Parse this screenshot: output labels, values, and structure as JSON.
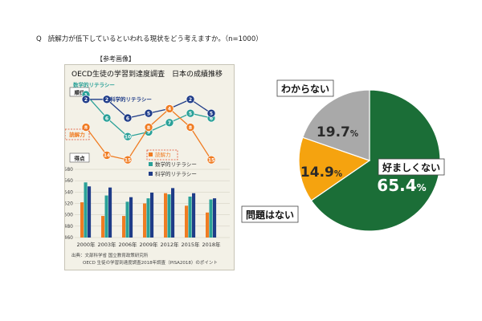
{
  "question": {
    "prefix": "Q",
    "text": "読解力が低下しているといわれる現状をどう考えますか。（n=1000）"
  },
  "reference_label": "【参考画像】",
  "left_panel": {
    "title": "OECD生徒の学習到達度調査　日本の成績推移",
    "rank_label": "順位",
    "score_label": "得点",
    "source_line1": "出典：文部科学省 国立教育政策研究所",
    "source_line2": "OECD 生徒の学習到達度調査2018年調査（PISA2018）のポイント"
  },
  "chart_data": [
    {
      "type": "line",
      "title": "OECD生徒の学習到達度調査　日本の成績推移",
      "ylabel": "順位",
      "y_inverted": true,
      "x": [
        "2000年",
        "2003年",
        "2006年",
        "2009年",
        "2012年",
        "2015年",
        "2018年"
      ],
      "series": [
        {
          "name": "数学的リテラシー",
          "color": "#2aa198",
          "values": [
            1,
            6,
            10,
            9,
            7,
            5,
            6
          ]
        },
        {
          "name": "科学的リテラシー",
          "color": "#1f3c88",
          "values": [
            2,
            2,
            6,
            5,
            4,
            2,
            5
          ]
        },
        {
          "name": "読解力",
          "color": "#f07c22",
          "values": [
            8,
            14,
            15,
            8,
            4,
            8,
            15
          ]
        }
      ]
    },
    {
      "type": "bar",
      "ylabel": "得点",
      "categories": [
        "2000年",
        "2003年",
        "2006年",
        "2009年",
        "2012年",
        "2015年",
        "2018年"
      ],
      "ylim": [
        460,
        580
      ],
      "yticks": [
        460,
        480,
        500,
        520,
        540,
        560,
        580
      ],
      "series": [
        {
          "name": "読解力",
          "color": "#f07c22",
          "values": [
            522,
            498,
            498,
            520,
            538,
            516,
            504
          ]
        },
        {
          "name": "数学的リテラシー",
          "color": "#2aa198",
          "values": [
            557,
            534,
            523,
            529,
            536,
            532,
            527
          ]
        },
        {
          "name": "科学的リテラシー",
          "color": "#1f3c88",
          "values": [
            550,
            548,
            531,
            539,
            547,
            538,
            529
          ]
        }
      ]
    },
    {
      "type": "pie",
      "slices": [
        {
          "label": "好ましくない",
          "value": 65.4,
          "value_text": "65.4",
          "unit": "%",
          "color": "#1b6e37"
        },
        {
          "label": "問題はない",
          "value": 14.9,
          "value_text": "14.9",
          "unit": "%",
          "color": "#f5a30f"
        },
        {
          "label": "わからない",
          "value": 19.7,
          "value_text": "19.7",
          "unit": "%",
          "color": "#a9a9a9"
        }
      ]
    }
  ]
}
